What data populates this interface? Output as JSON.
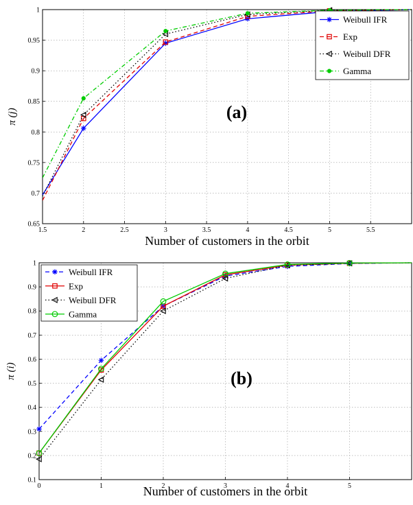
{
  "chart_data": [
    {
      "type": "line",
      "panel_label": "(a)",
      "xlabel": "Number  of customers in the orbit",
      "ylabel": "π (j)",
      "xlim": [
        1.5,
        6
      ],
      "ylim": [
        0.65,
        1.0
      ],
      "xticks": [
        1.5,
        2,
        2.5,
        3,
        3.5,
        4,
        4.5,
        5,
        5.5
      ],
      "yticks": [
        0.65,
        0.7,
        0.75,
        0.8,
        0.85,
        0.9,
        0.95,
        1
      ],
      "grid": true,
      "legend_position": "top-right",
      "series": [
        {
          "name": "Weibull IFR",
          "color": "#0000ff",
          "dash": "",
          "marker": "star",
          "x": [
            1.5,
            2,
            3,
            4,
            5,
            6
          ],
          "y": [
            0.697,
            0.806,
            0.945,
            0.985,
            0.997,
            1.0
          ]
        },
        {
          "name": "Exp",
          "color": "#e00000",
          "dash": "6,4",
          "marker": "square",
          "x": [
            1.5,
            2,
            3,
            4,
            5,
            6
          ],
          "y": [
            0.688,
            0.822,
            0.947,
            0.989,
            0.998,
            1.0
          ]
        },
        {
          "name": "Weibull DFR",
          "color": "#000000",
          "dash": "1.5,3",
          "marker": "triangle-left",
          "x": [
            1.5,
            2,
            3,
            4,
            5,
            6
          ],
          "y": [
            0.695,
            0.828,
            0.96,
            0.992,
            0.999,
            1.0
          ]
        },
        {
          "name": "Gamma",
          "color": "#00cc00",
          "dash": "6,3,1.5,3",
          "marker": "dot",
          "x": [
            1.5,
            2,
            3,
            4,
            5,
            6
          ],
          "y": [
            0.725,
            0.855,
            0.965,
            0.994,
            0.999,
            1.0
          ]
        }
      ]
    },
    {
      "type": "line",
      "panel_label": "(b)",
      "xlabel": "Number of customers in the orbit",
      "ylabel": "π (i)",
      "xlim": [
        0,
        6
      ],
      "ylim": [
        0.1,
        1.0
      ],
      "xticks": [
        0,
        1,
        2,
        3,
        4,
        5
      ],
      "yticks": [
        0.1,
        0.2,
        0.3,
        0.4,
        0.5,
        0.6,
        0.7,
        0.8,
        0.9,
        1
      ],
      "grid": true,
      "legend_position": "top-left",
      "series": [
        {
          "name": "Weibull IFR",
          "color": "#0000ff",
          "dash": "6,4",
          "marker": "star",
          "x": [
            0,
            1,
            2,
            3,
            4,
            5,
            6
          ],
          "y": [
            0.31,
            0.595,
            0.82,
            0.945,
            0.985,
            0.997,
            1.0
          ]
        },
        {
          "name": "Exp",
          "color": "#e00000",
          "dash": "",
          "marker": "square",
          "x": [
            0,
            1,
            2,
            3,
            4,
            5,
            6
          ],
          "y": [
            0.21,
            0.555,
            0.82,
            0.95,
            0.99,
            0.998,
            1.0
          ]
        },
        {
          "name": "Weibull DFR",
          "color": "#000000",
          "dash": "1.5,3",
          "marker": "triangle-left",
          "x": [
            0,
            1,
            2,
            3,
            4,
            5,
            6
          ],
          "y": [
            0.185,
            0.515,
            0.8,
            0.935,
            0.99,
            0.998,
            1.0
          ]
        },
        {
          "name": "Gamma",
          "color": "#00cc00",
          "dash": "",
          "marker": "circle",
          "x": [
            0,
            1,
            2,
            3,
            4,
            5,
            6
          ],
          "y": [
            0.21,
            0.56,
            0.84,
            0.955,
            0.993,
            0.999,
            1.0
          ]
        }
      ]
    }
  ]
}
